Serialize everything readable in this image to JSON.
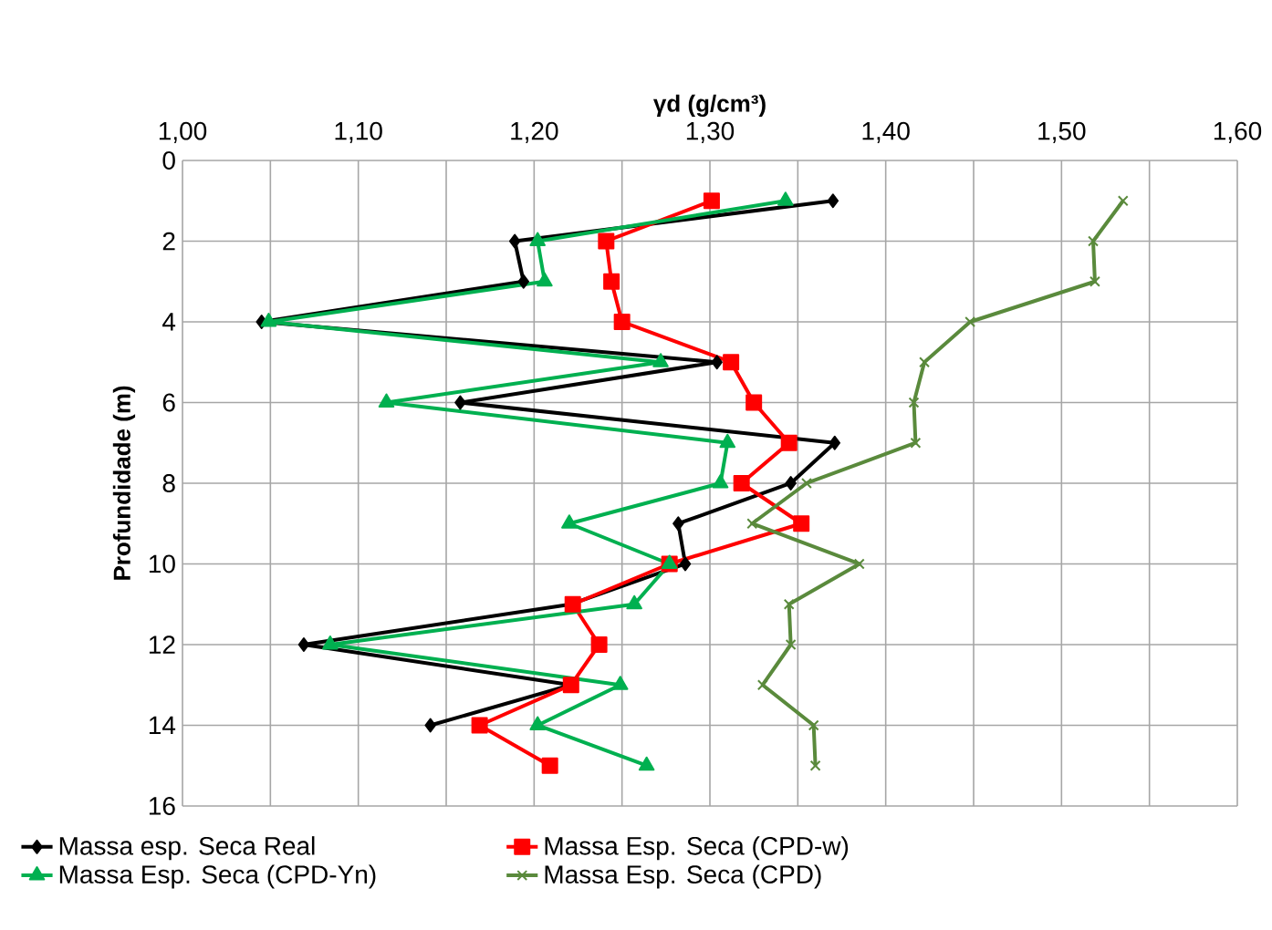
{
  "chart_data": {
    "type": "line",
    "xlabel": "γd (g/cm³)",
    "ylabel": "Profundidade (m)",
    "xlim": [
      1.0,
      1.6
    ],
    "ylim": [
      16,
      0
    ],
    "xticks": [
      {
        "value": 1.0,
        "label": "1,00"
      },
      {
        "value": 1.05,
        "label": null
      },
      {
        "value": 1.1,
        "label": "1,10"
      },
      {
        "value": 1.15,
        "label": null
      },
      {
        "value": 1.2,
        "label": "1,20"
      },
      {
        "value": 1.25,
        "label": null
      },
      {
        "value": 1.3,
        "label": "1,30"
      },
      {
        "value": 1.35,
        "label": null
      },
      {
        "value": 1.4,
        "label": "1,40"
      },
      {
        "value": 1.45,
        "label": null
      },
      {
        "value": 1.5,
        "label": "1,50"
      },
      {
        "value": 1.55,
        "label": null
      },
      {
        "value": 1.6,
        "label": "1,60"
      }
    ],
    "yticks": [
      0,
      2,
      4,
      6,
      8,
      10,
      12,
      14,
      16
    ],
    "grid": true,
    "legend": "bottom",
    "line_style": "solid",
    "series": [
      {
        "name": "Massa esp. Seca Real",
        "color": "#000000",
        "marker": "diamond",
        "x": [
          1.37,
          1.189,
          1.194,
          1.045,
          1.304,
          1.158,
          1.371,
          1.346,
          1.282,
          1.286,
          1.221,
          1.069,
          1.221,
          1.141
        ],
        "values": [
          1,
          2,
          3,
          4,
          5,
          6,
          7,
          8,
          9,
          10,
          11,
          12,
          13,
          14
        ]
      },
      {
        "name": "Massa Esp. Seca (CPD-w)",
        "color": "#ff0000",
        "marker": "square",
        "x": [
          1.301,
          1.241,
          1.244,
          1.25,
          1.312,
          1.325,
          1.345,
          1.318,
          1.352,
          1.277,
          1.222,
          1.237,
          1.221,
          1.169,
          1.209
        ],
        "values": [
          1,
          2,
          3,
          4,
          5,
          6,
          7,
          8,
          9,
          10,
          11,
          12,
          13,
          14,
          15
        ]
      },
      {
        "name": "Massa Esp. Seca (CPD-Yn)",
        "color": "#00b050",
        "marker": "triangle",
        "x": [
          1.343,
          1.202,
          1.206,
          1.049,
          1.272,
          1.116,
          1.31,
          1.306,
          1.22,
          1.277,
          1.257,
          1.084,
          1.249,
          1.202,
          1.264
        ],
        "values": [
          1,
          2,
          3,
          4,
          5,
          6,
          7,
          8,
          9,
          10,
          11,
          12,
          13,
          14,
          15
        ]
      },
      {
        "name": "Massa Esp. Seca (CPD)",
        "color": "#5a8a3c",
        "marker": "cross",
        "x": [
          1.535,
          1.518,
          1.519,
          1.448,
          1.422,
          1.416,
          1.417,
          1.355,
          1.324,
          1.385,
          1.345,
          1.346,
          1.33,
          1.359,
          1.36
        ],
        "values": [
          1,
          2,
          3,
          4,
          5,
          6,
          7,
          8,
          9,
          10,
          11,
          12,
          13,
          14,
          15
        ]
      }
    ]
  }
}
